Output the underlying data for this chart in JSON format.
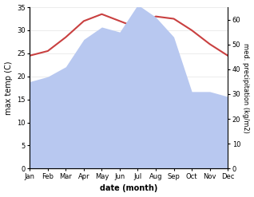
{
  "months": [
    "Jan",
    "Feb",
    "Mar",
    "Apr",
    "May",
    "Jun",
    "Jul",
    "Aug",
    "Sep",
    "Oct",
    "Nov",
    "Dec"
  ],
  "temperature": [
    24.5,
    25.5,
    28.5,
    32.0,
    33.5,
    32.0,
    30.5,
    33.0,
    32.5,
    30.0,
    27.0,
    24.5
  ],
  "temp_color": "#c94040",
  "precip_color": "#b8c8f0",
  "ylim_left": [
    0,
    35
  ],
  "ylim_right": [
    0,
    65
  ],
  "yticks_left": [
    0,
    5,
    10,
    15,
    20,
    25,
    30,
    35
  ],
  "yticks_right": [
    0,
    10,
    20,
    30,
    40,
    50,
    60
  ],
  "precip_right_values": [
    35,
    37,
    41,
    52,
    57,
    55,
    66,
    61,
    53,
    31,
    31,
    29
  ],
  "xlabel": "date (month)",
  "ylabel_left": "max temp (C)",
  "ylabel_right": "med. precipitation (kg/m2)",
  "bg_color": "#ffffff"
}
